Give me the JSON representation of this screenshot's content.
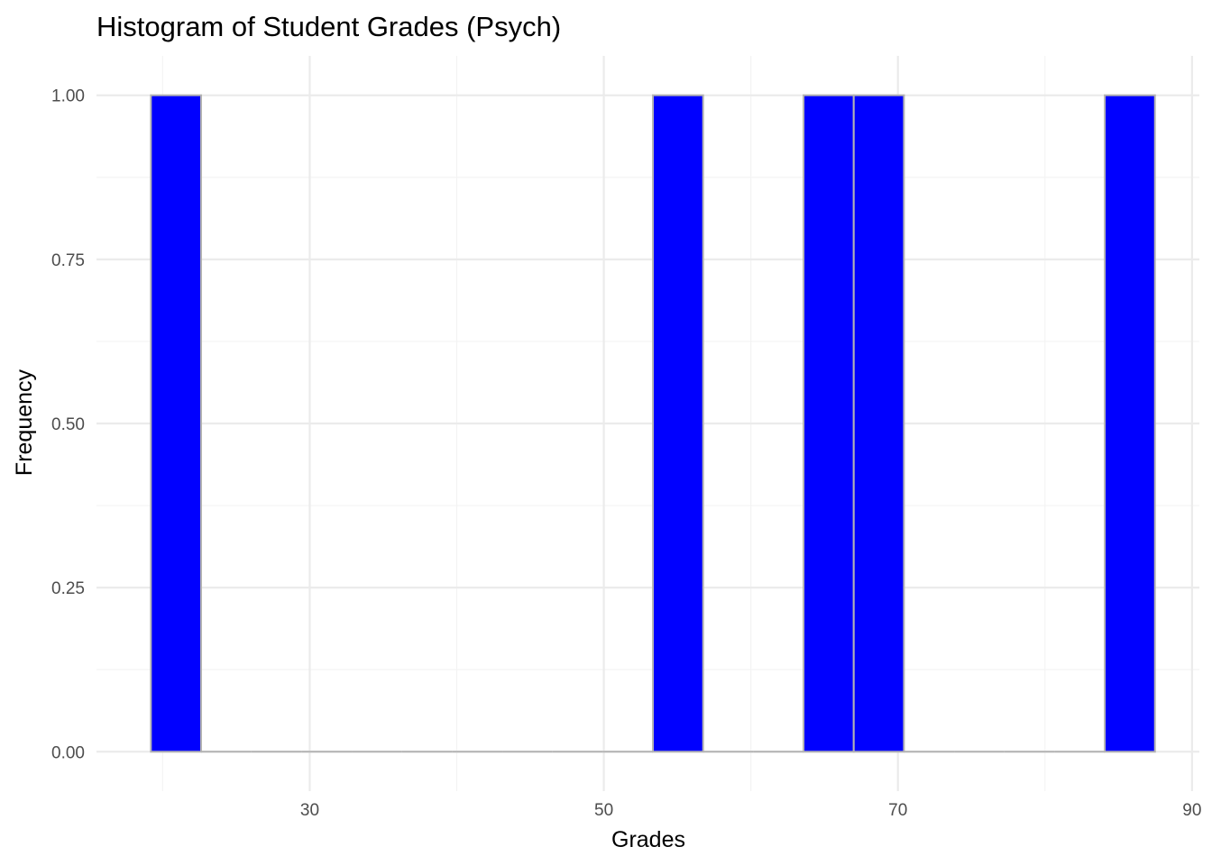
{
  "chart_data": {
    "type": "bar",
    "title": "Histogram of Student Grades (Psych)",
    "xlabel": "Grades",
    "ylabel": "Frequency",
    "xlim": [
      15.5,
      90.5
    ],
    "ylim": [
      -0.06,
      1.06
    ],
    "x_ticks": [
      "30",
      "50",
      "70",
      "90"
    ],
    "y_ticks": [
      "0.00",
      "0.25",
      "0.50",
      "0.75",
      "1.00"
    ],
    "binwidth": 3.414,
    "bins": [
      {
        "start": 19.2,
        "end": 22.614,
        "count": 1
      },
      {
        "start": 22.614,
        "end": 26.028,
        "count": 0
      },
      {
        "start": 26.028,
        "end": 29.442,
        "count": 0
      },
      {
        "start": 29.442,
        "end": 32.856,
        "count": 0
      },
      {
        "start": 32.856,
        "end": 36.27,
        "count": 0
      },
      {
        "start": 36.27,
        "end": 39.684,
        "count": 0
      },
      {
        "start": 39.684,
        "end": 43.098,
        "count": 0
      },
      {
        "start": 43.098,
        "end": 46.512,
        "count": 0
      },
      {
        "start": 46.512,
        "end": 49.926,
        "count": 0
      },
      {
        "start": 49.926,
        "end": 53.34,
        "count": 0
      },
      {
        "start": 53.34,
        "end": 56.754,
        "count": 1
      },
      {
        "start": 56.754,
        "end": 60.168,
        "count": 0
      },
      {
        "start": 60.168,
        "end": 63.582,
        "count": 0
      },
      {
        "start": 63.582,
        "end": 66.996,
        "count": 1
      },
      {
        "start": 66.996,
        "end": 70.41,
        "count": 1
      },
      {
        "start": 70.41,
        "end": 73.824,
        "count": 0
      },
      {
        "start": 73.824,
        "end": 77.238,
        "count": 0
      },
      {
        "start": 77.238,
        "end": 80.652,
        "count": 0
      },
      {
        "start": 80.652,
        "end": 84.066,
        "count": 0
      },
      {
        "start": 84.066,
        "end": 87.48,
        "count": 1
      }
    ],
    "grid": true,
    "colors": {
      "fill": "#0000ff",
      "outline": "#b3b3b3",
      "grid_major": "#ebebeb",
      "grid_minor": "#f3f3f3"
    }
  }
}
